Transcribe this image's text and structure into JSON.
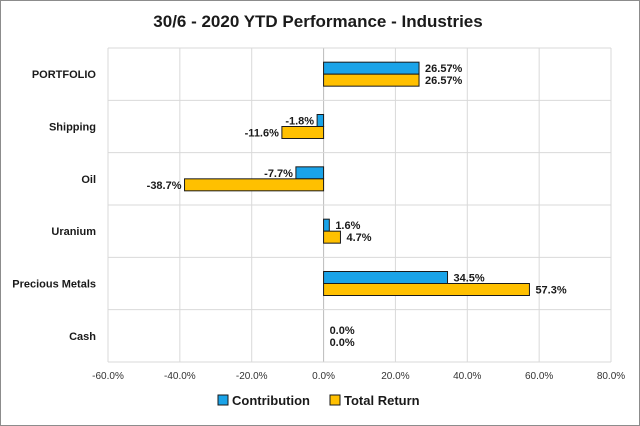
{
  "chart_data": {
    "type": "bar",
    "orientation": "horizontal",
    "title": "30/6 - 2020 YTD Performance - Industries",
    "categories": [
      "PORTFOLIO",
      "Shipping",
      "Oil",
      "Uranium",
      "Precious Metals",
      "Cash"
    ],
    "series": [
      {
        "name": "Contribution",
        "color": "#1aa3e8",
        "values": [
          26.57,
          -1.8,
          -7.7,
          1.6,
          34.5,
          0.0
        ],
        "labels": [
          "26.57%",
          "-1.8%",
          "-7.7%",
          "1.6%",
          "34.5%",
          "0.0%"
        ]
      },
      {
        "name": "Total Return",
        "color": "#ffc000",
        "values": [
          26.57,
          -11.6,
          -38.7,
          4.7,
          57.3,
          0.0
        ],
        "labels": [
          "26.57%",
          "-11.6%",
          "-38.7%",
          "4.7%",
          "57.3%",
          "0.0%"
        ]
      }
    ],
    "xlim": [
      -60,
      80
    ],
    "xticks": [
      -60,
      -40,
      -20,
      0,
      20,
      40,
      60,
      80
    ],
    "xtick_labels": [
      "-60.0%",
      "-40.0%",
      "-20.0%",
      "0.0%",
      "20.0%",
      "40.0%",
      "60.0%",
      "80.0%"
    ],
    "grid": true,
    "legend_position": "bottom",
    "xlabel": "",
    "ylabel": ""
  }
}
